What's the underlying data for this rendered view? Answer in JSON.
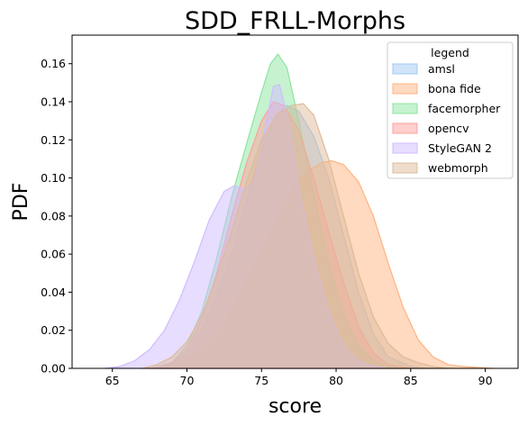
{
  "chart_data": {
    "type": "area",
    "title": "SDD_FRLL-Morphs",
    "xlabel": "score",
    "ylabel": "PDF",
    "xlim": [
      62.3,
      92.2
    ],
    "ylim": [
      0,
      0.175
    ],
    "xticks": [
      65,
      70,
      75,
      80,
      85,
      90
    ],
    "yticks": [
      0.0,
      0.02,
      0.04,
      0.06,
      0.08,
      0.1,
      0.12,
      0.14,
      0.16
    ],
    "grid": false,
    "legend": {
      "title": "legend",
      "placement": "top-right"
    },
    "series": [
      {
        "name": "amsl",
        "color": "#a1c9f4",
        "points": [
          [
            67.5,
            0
          ],
          [
            69,
            0.003
          ],
          [
            70,
            0.008
          ],
          [
            71,
            0.02
          ],
          [
            72,
            0.038
          ],
          [
            73,
            0.06
          ],
          [
            74,
            0.088
          ],
          [
            75,
            0.116
          ],
          [
            76,
            0.133
          ],
          [
            76.7,
            0.138
          ],
          [
            77.5,
            0.135
          ],
          [
            78.5,
            0.122
          ],
          [
            79.5,
            0.1
          ],
          [
            80.5,
            0.07
          ],
          [
            81.5,
            0.04
          ],
          [
            82.5,
            0.018
          ],
          [
            83.5,
            0.006
          ],
          [
            85,
            0.001
          ],
          [
            86,
            0
          ]
        ]
      },
      {
        "name": "bona fide",
        "color": "#ffb482",
        "points": [
          [
            67.5,
            0
          ],
          [
            69,
            0.002
          ],
          [
            70,
            0.005
          ],
          [
            71,
            0.01
          ],
          [
            72,
            0.018
          ],
          [
            73,
            0.03
          ],
          [
            74,
            0.046
          ],
          [
            75,
            0.062
          ],
          [
            76,
            0.078
          ],
          [
            77,
            0.093
          ],
          [
            78,
            0.103
          ],
          [
            79,
            0.108
          ],
          [
            79.7,
            0.109
          ],
          [
            80.5,
            0.107
          ],
          [
            81.5,
            0.098
          ],
          [
            82.5,
            0.08
          ],
          [
            83.5,
            0.055
          ],
          [
            84.5,
            0.032
          ],
          [
            85.5,
            0.015
          ],
          [
            86.5,
            0.006
          ],
          [
            87.5,
            0.002
          ],
          [
            88.5,
            0.001
          ],
          [
            90.5,
            0
          ]
        ]
      },
      {
        "name": "facemorpher",
        "color": "#8de5a1",
        "points": [
          [
            68,
            0
          ],
          [
            69,
            0.003
          ],
          [
            70,
            0.012
          ],
          [
            71,
            0.03
          ],
          [
            72,
            0.058
          ],
          [
            73,
            0.09
          ],
          [
            74,
            0.118
          ],
          [
            75,
            0.145
          ],
          [
            75.6,
            0.16
          ],
          [
            76.1,
            0.165
          ],
          [
            76.7,
            0.158
          ],
          [
            77.5,
            0.13
          ],
          [
            78.5,
            0.092
          ],
          [
            79.5,
            0.055
          ],
          [
            80.5,
            0.028
          ],
          [
            81.5,
            0.012
          ],
          [
            82.5,
            0.004
          ],
          [
            83.5,
            0.001
          ],
          [
            84.5,
            0
          ]
        ]
      },
      {
        "name": "opencv",
        "color": "#ff9f9b",
        "points": [
          [
            68,
            0
          ],
          [
            69,
            0.003
          ],
          [
            70,
            0.01
          ],
          [
            71,
            0.026
          ],
          [
            72,
            0.05
          ],
          [
            73,
            0.08
          ],
          [
            74,
            0.108
          ],
          [
            75,
            0.13
          ],
          [
            75.8,
            0.14
          ],
          [
            76.5,
            0.138
          ],
          [
            77.5,
            0.125
          ],
          [
            78.5,
            0.1
          ],
          [
            79.5,
            0.072
          ],
          [
            80.5,
            0.045
          ],
          [
            81.5,
            0.022
          ],
          [
            82.5,
            0.008
          ],
          [
            83.5,
            0.002
          ],
          [
            85,
            0
          ]
        ]
      },
      {
        "name": "StyleGAN 2",
        "color": "#d0bbff",
        "points": [
          [
            64.5,
            0
          ],
          [
            65.5,
            0.001
          ],
          [
            66.5,
            0.004
          ],
          [
            67.5,
            0.01
          ],
          [
            68.5,
            0.02
          ],
          [
            69.5,
            0.036
          ],
          [
            70.5,
            0.056
          ],
          [
            71.5,
            0.078
          ],
          [
            72.5,
            0.093
          ],
          [
            73.2,
            0.096
          ],
          [
            73.8,
            0.094
          ],
          [
            74.5,
            0.098
          ],
          [
            75.2,
            0.125
          ],
          [
            75.8,
            0.148
          ],
          [
            76.2,
            0.149
          ],
          [
            76.8,
            0.13
          ],
          [
            77.5,
            0.095
          ],
          [
            78.5,
            0.058
          ],
          [
            79.5,
            0.03
          ],
          [
            80.5,
            0.012
          ],
          [
            81.5,
            0.004
          ],
          [
            82.5,
            0.001
          ],
          [
            83.5,
            0
          ]
        ]
      },
      {
        "name": "webmorph",
        "color": "#debb9b",
        "points": [
          [
            67,
            0
          ],
          [
            68,
            0.002
          ],
          [
            69,
            0.006
          ],
          [
            70,
            0.014
          ],
          [
            71,
            0.028
          ],
          [
            72,
            0.048
          ],
          [
            73,
            0.072
          ],
          [
            74,
            0.098
          ],
          [
            75,
            0.12
          ],
          [
            76,
            0.133
          ],
          [
            77,
            0.138
          ],
          [
            77.8,
            0.139
          ],
          [
            78.5,
            0.133
          ],
          [
            79.5,
            0.11
          ],
          [
            80.5,
            0.08
          ],
          [
            81.5,
            0.05
          ],
          [
            82.5,
            0.027
          ],
          [
            83.5,
            0.013
          ],
          [
            84.5,
            0.006
          ],
          [
            85.5,
            0.003
          ],
          [
            86.5,
            0.001
          ],
          [
            87.5,
            0
          ]
        ]
      }
    ]
  }
}
